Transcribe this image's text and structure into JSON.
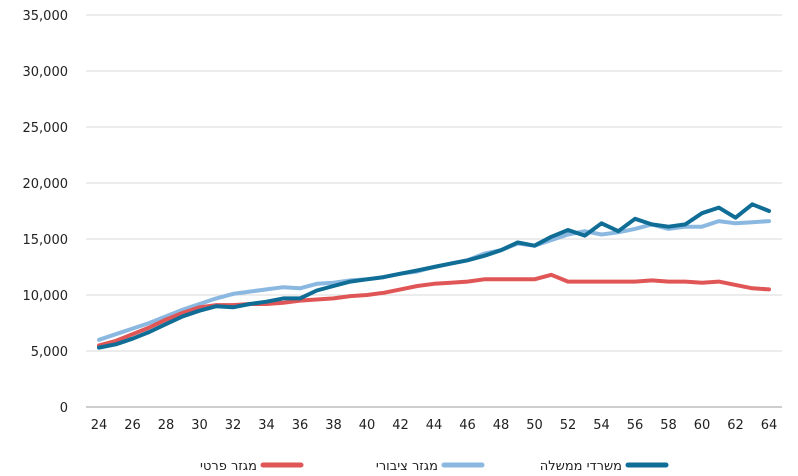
{
  "chart_data": {
    "type": "line",
    "title": "",
    "xlabel": "",
    "ylabel": "",
    "x": [
      24,
      25,
      26,
      27,
      28,
      29,
      30,
      31,
      32,
      33,
      34,
      35,
      36,
      37,
      38,
      39,
      40,
      41,
      42,
      43,
      44,
      45,
      46,
      47,
      48,
      49,
      50,
      51,
      52,
      53,
      54,
      55,
      56,
      57,
      58,
      59,
      60,
      61,
      62,
      63,
      64
    ],
    "x_ticks": [
      "24",
      "26",
      "28",
      "30",
      "32",
      "34",
      "36",
      "38",
      "40",
      "42",
      "44",
      "46",
      "48",
      "50",
      "52",
      "54",
      "56",
      "58",
      "60",
      "62",
      "64"
    ],
    "ylim": [
      0,
      35000
    ],
    "y_ticks": [
      "0",
      "5,000",
      "10,000",
      "15,000",
      "20,000",
      "25,000",
      "30,000",
      "35,000"
    ],
    "grid": true,
    "legend_position": "bottom",
    "series": [
      {
        "name": "משרדי ממשלה",
        "color": "#0f6d96",
        "values": [
          5300,
          5600,
          6100,
          6700,
          7400,
          8100,
          8600,
          9000,
          8900,
          9200,
          9400,
          9700,
          9700,
          10400,
          10800,
          11200,
          11400,
          11600,
          11900,
          12200,
          12500,
          12800,
          13100,
          13500,
          14000,
          14700,
          14400,
          15200,
          15800,
          15300,
          16400,
          15700,
          16800,
          16300,
          16100,
          16300,
          17300,
          17800,
          16900,
          18100,
          17500
        ]
      },
      {
        "name": "מגזר ציבורי",
        "color": "#8ab8e0",
        "values": [
          6000,
          6500,
          7000,
          7500,
          8100,
          8700,
          9200,
          9700,
          10100,
          10300,
          10500,
          10700,
          10600,
          11000,
          11100,
          11300,
          11400,
          11600,
          11900,
          12100,
          12500,
          12800,
          13100,
          13700,
          14000,
          14600,
          14400,
          14900,
          15400,
          15700,
          15400,
          15600,
          15900,
          16300,
          15900,
          16100,
          16100,
          16600,
          16400,
          16500,
          16600
        ]
      },
      {
        "name": "מגזר פרטי",
        "color": "#e05656",
        "values": [
          5500,
          5900,
          6500,
          7100,
          7800,
          8400,
          8900,
          9100,
          9100,
          9200,
          9200,
          9300,
          9500,
          9600,
          9700,
          9900,
          10000,
          10200,
          10500,
          10800,
          11000,
          11100,
          11200,
          11400,
          11400,
          11400,
          11400,
          11800,
          11200,
          11200,
          11200,
          11200,
          11200,
          11300,
          11200,
          11200,
          11100,
          11200,
          10900,
          10600,
          10500
        ]
      }
    ]
  }
}
